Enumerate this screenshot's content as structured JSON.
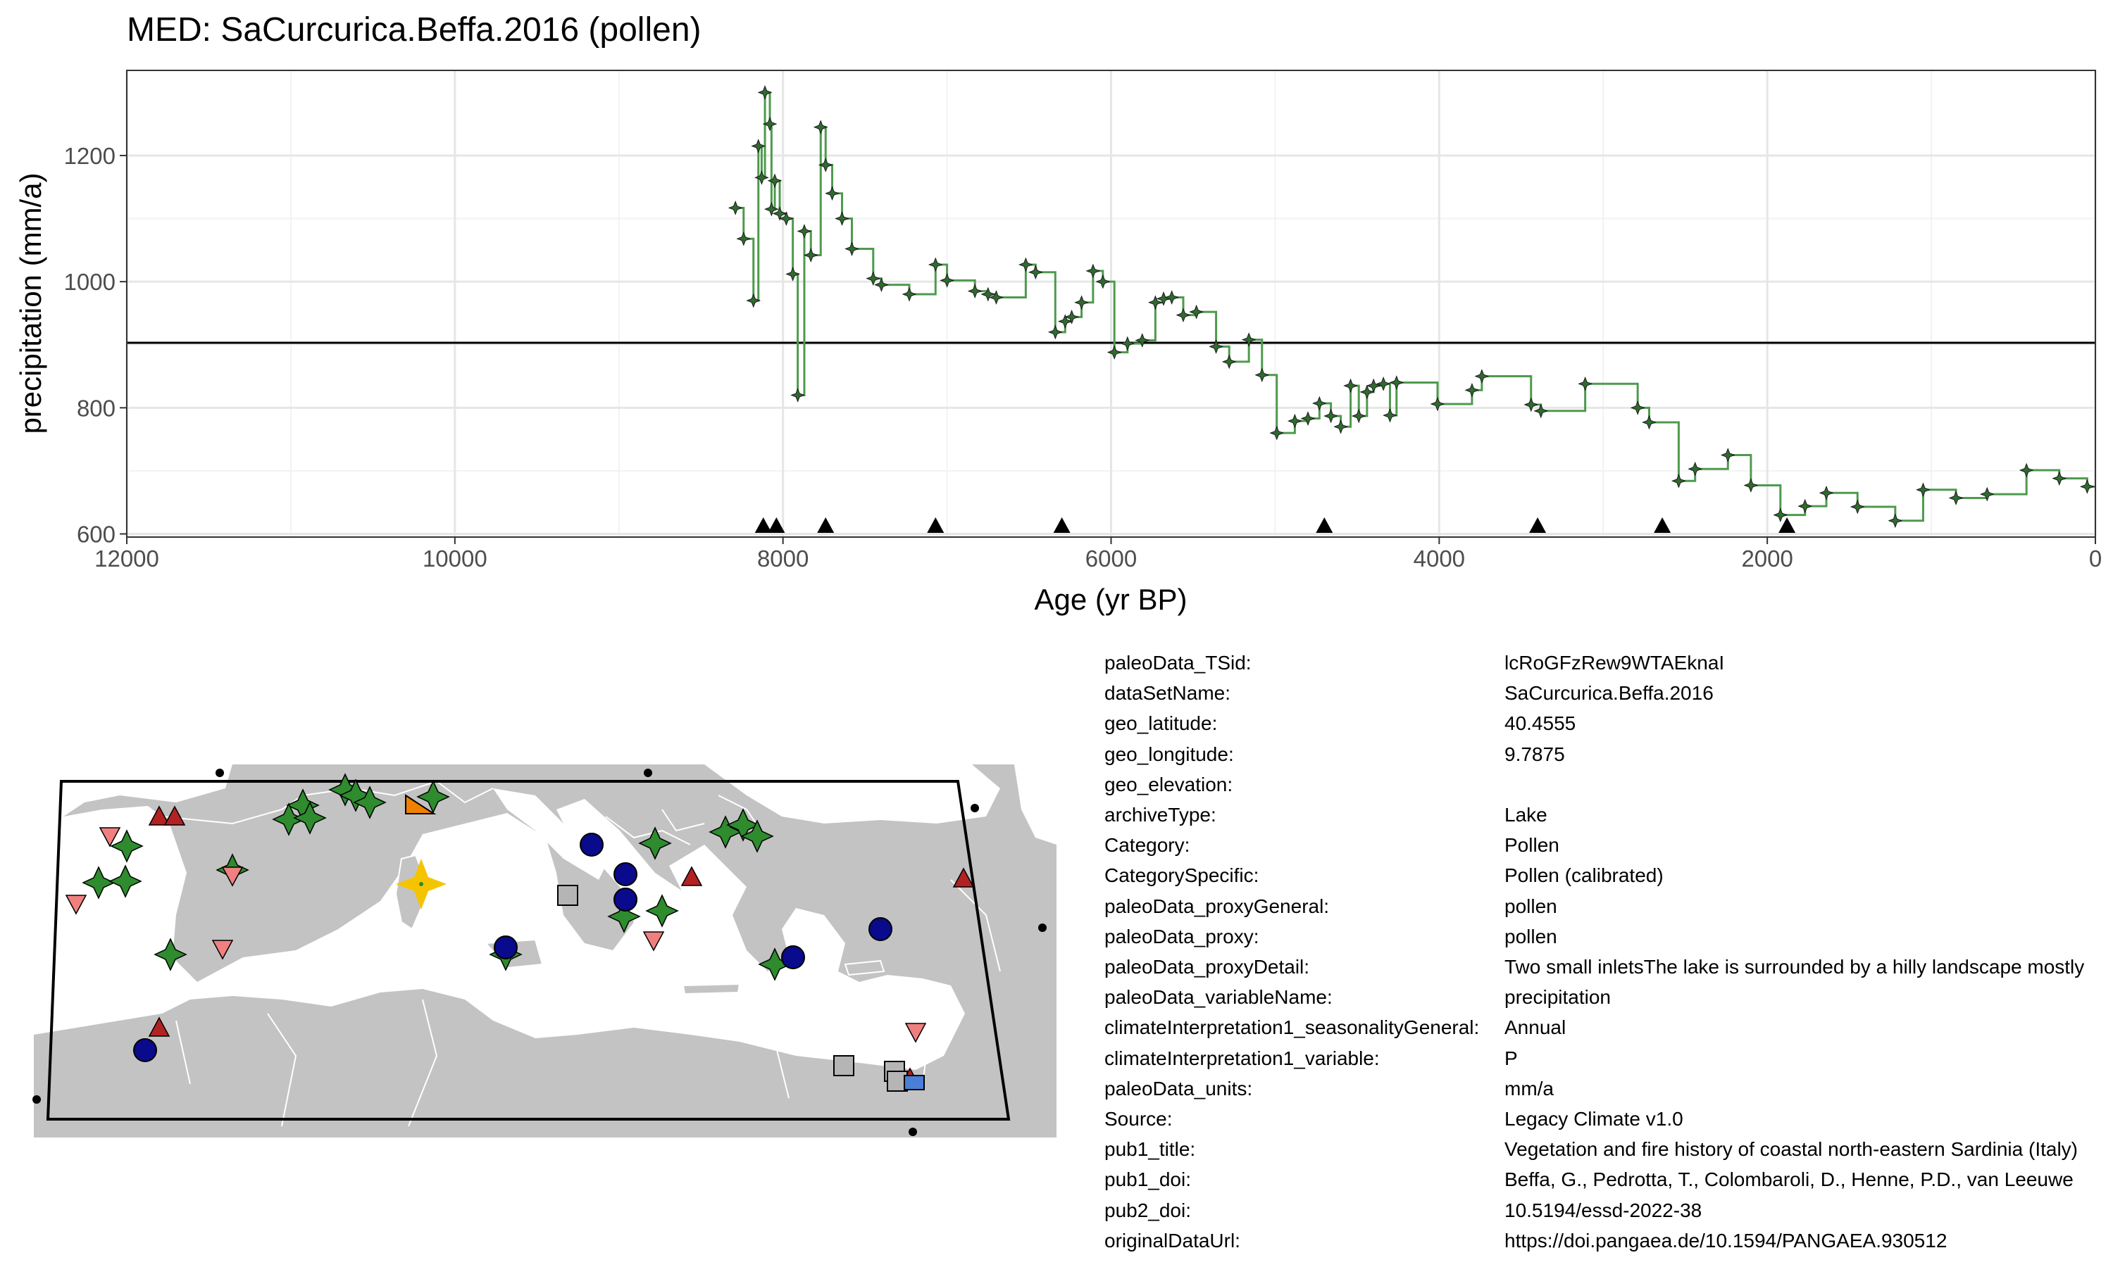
{
  "chart_data": {
    "type": "line",
    "title": "MED: SaCurcurica.Beffa.2016 (pollen)",
    "xlabel": "Age (yr BP)",
    "ylabel": "precipitation (mm/a)",
    "xlim": [
      12000,
      0
    ],
    "ylim": [
      595,
      1335
    ],
    "x_ticks": [
      12000,
      10000,
      8000,
      6000,
      4000,
      2000,
      0
    ],
    "y_ticks": [
      600,
      800,
      1000,
      1200
    ],
    "grid": true,
    "reference_line": 903,
    "series": [
      {
        "points": [
          [
            8290,
            1117
          ],
          [
            8240,
            1068
          ],
          [
            8180,
            970
          ],
          [
            8150,
            1215
          ],
          [
            8130,
            1165
          ],
          [
            8110,
            1300
          ],
          [
            8080,
            1250
          ],
          [
            8070,
            1115
          ],
          [
            8050,
            1160
          ],
          [
            8020,
            1108
          ],
          [
            7980,
            1100
          ],
          [
            7940,
            1012
          ],
          [
            7910,
            820
          ],
          [
            7870,
            1080
          ],
          [
            7830,
            1042
          ],
          [
            7770,
            1245
          ],
          [
            7740,
            1185
          ],
          [
            7700,
            1140
          ],
          [
            7640,
            1100
          ],
          [
            7580,
            1052
          ],
          [
            7450,
            1005
          ],
          [
            7400,
            995
          ],
          [
            7230,
            980
          ],
          [
            7070,
            1027
          ],
          [
            7000,
            1002
          ],
          [
            6830,
            985
          ],
          [
            6750,
            980
          ],
          [
            6700,
            975
          ],
          [
            6520,
            1027
          ],
          [
            6460,
            1015
          ],
          [
            6340,
            920
          ],
          [
            6280,
            937
          ],
          [
            6240,
            944
          ],
          [
            6180,
            967
          ],
          [
            6110,
            1017
          ],
          [
            6050,
            1000
          ],
          [
            5980,
            888
          ],
          [
            5900,
            902
          ],
          [
            5810,
            907
          ],
          [
            5730,
            967
          ],
          [
            5680,
            973
          ],
          [
            5630,
            975
          ],
          [
            5560,
            947
          ],
          [
            5480,
            952
          ],
          [
            5360,
            897
          ],
          [
            5280,
            873
          ],
          [
            5160,
            908
          ],
          [
            5080,
            852
          ],
          [
            4990,
            760
          ],
          [
            4880,
            779
          ],
          [
            4800,
            783
          ],
          [
            4730,
            807
          ],
          [
            4660,
            787
          ],
          [
            4600,
            770
          ],
          [
            4540,
            835
          ],
          [
            4490,
            787
          ],
          [
            4440,
            825
          ],
          [
            4400,
            835
          ],
          [
            4340,
            838
          ],
          [
            4300,
            788
          ],
          [
            4260,
            840
          ],
          [
            4010,
            806
          ],
          [
            3800,
            828
          ],
          [
            3740,
            850
          ],
          [
            3440,
            805
          ],
          [
            3380,
            795
          ],
          [
            3110,
            838
          ],
          [
            2790,
            800
          ],
          [
            2720,
            777
          ],
          [
            2540,
            684
          ],
          [
            2440,
            703
          ],
          [
            2240,
            725
          ],
          [
            2100,
            677
          ],
          [
            1920,
            630
          ],
          [
            1770,
            644
          ],
          [
            1640,
            665
          ],
          [
            1450,
            643
          ],
          [
            1220,
            621
          ],
          [
            1050,
            670
          ],
          [
            850,
            657
          ],
          [
            660,
            663
          ],
          [
            420,
            701
          ],
          [
            220,
            688
          ],
          [
            50,
            675
          ]
        ]
      }
    ],
    "age_control_points": [
      8120,
      8040,
      7740,
      7070,
      6300,
      4700,
      3400,
      2640,
      1880
    ],
    "site_map": {
      "highlight_site": "SaCurcurica.Beffa.2016"
    }
  },
  "metadata": [
    {
      "key": "paleoData_TSid:",
      "value": "lcRoGFzRew9WTAEknaI"
    },
    {
      "key": "dataSetName:",
      "value": "SaCurcurica.Beffa.2016"
    },
    {
      "key": "geo_latitude:",
      "value": "40.4555"
    },
    {
      "key": "geo_longitude:",
      "value": "9.7875"
    },
    {
      "key": "geo_elevation:",
      "value": ""
    },
    {
      "key": "archiveType:",
      "value": "Lake"
    },
    {
      "key": "Category:",
      "value": "Pollen"
    },
    {
      "key": "CategorySpecific:",
      "value": "Pollen (calibrated)"
    },
    {
      "key": "paleoData_proxyGeneral:",
      "value": "pollen"
    },
    {
      "key": "paleoData_proxy:",
      "value": "pollen"
    },
    {
      "key": "paleoData_proxyDetail:",
      "value": "Two small inletsThe lake is surrounded by a hilly landscape mostly"
    },
    {
      "key": "paleoData_variableName:",
      "value": "precipitation"
    },
    {
      "key": "climateInterpretation1_seasonalityGeneral:",
      "value": "Annual"
    },
    {
      "key": "climateInterpretation1_variable:",
      "value": "P"
    },
    {
      "key": "paleoData_units:",
      "value": "mm/a"
    },
    {
      "key": "Source:",
      "value": "Legacy Climate v1.0"
    },
    {
      "key": "pub1_title:",
      "value": "Vegetation and fire history of coastal north-eastern Sardinia (Italy)"
    },
    {
      "key": "pub1_doi:",
      "value": "Beffa, G., Pedrotta, T., Colombaroli, D., Henne, P.D., van Leeuwe"
    },
    {
      "key": "pub2_doi:",
      "value": "10.5194/essd-2022-38"
    },
    {
      "key": "originalDataUrl:",
      "value": "https://doi.pangaea.de/10.1594/PANGAEA.930512"
    }
  ],
  "colors": {
    "series_line": "#4e9a4e",
    "point_fill": "#2f6b2f",
    "reference_line": "#000000",
    "grid_major": "#e6e6e6",
    "grid_minor": "#f2f2f2",
    "land": "#c3c3c3",
    "highlight": "#f5c400",
    "green_site": "#2e8b2e",
    "blue_site": "#0a0a8c",
    "red_triangle": "#b22222",
    "pink_triangle": "#f08080",
    "gray_square": "#b5b5b5"
  }
}
